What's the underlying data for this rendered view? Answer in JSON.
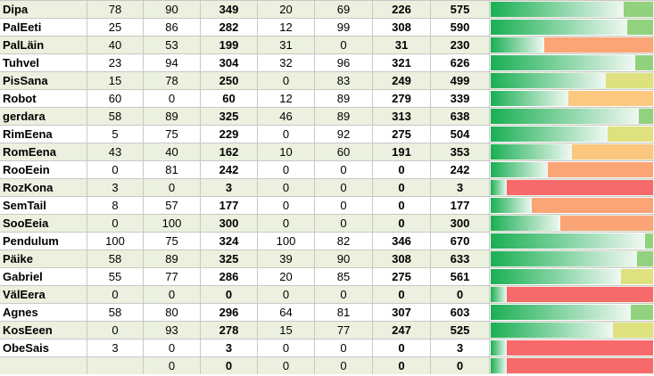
{
  "colors": {
    "row_odd": "#ebf1de",
    "row_even": "#ffffff",
    "grid": "#c8c8c8",
    "bar_gradient_start": "#1aaf54",
    "bar_gradient_end": "#f0f8f2",
    "status_high": "#92d17e",
    "status_mid_high": "#dfe17f",
    "status_mid": "#fcc77e",
    "status_low": "#fba476",
    "status_min": "#f8696b"
  },
  "max_total": 700,
  "rows": [
    {
      "name": "Dipa",
      "v1": "78",
      "v2": "90",
      "v3": "349",
      "v4": "20",
      "v5": "69",
      "v6": "226",
      "total": "575",
      "progress": 0.82,
      "status": "high"
    },
    {
      "name": "PalEeti",
      "v1": "25",
      "v2": "86",
      "v3": "282",
      "v4": "12",
      "v5": "99",
      "v6": "308",
      "total": "590",
      "progress": 0.84,
      "status": "high"
    },
    {
      "name": "PalLäin",
      "v1": "40",
      "v2": "53",
      "v3": "199",
      "v4": "31",
      "v5": "0",
      "v6": "31",
      "total": "230",
      "progress": 0.33,
      "status": "low"
    },
    {
      "name": "Tuhvel",
      "v1": "23",
      "v2": "94",
      "v3": "304",
      "v4": "32",
      "v5": "96",
      "v6": "321",
      "total": "626",
      "progress": 0.89,
      "status": "high"
    },
    {
      "name": "PisSana",
      "v1": "15",
      "v2": "78",
      "v3": "250",
      "v4": "0",
      "v5": "83",
      "v6": "249",
      "total": "499",
      "progress": 0.71,
      "status": "mid_high"
    },
    {
      "name": "Robot",
      "v1": "60",
      "v2": "0",
      "v3": "60",
      "v4": "12",
      "v5": "89",
      "v6": "279",
      "total": "339",
      "progress": 0.48,
      "status": "mid"
    },
    {
      "name": "gerdara",
      "v1": "58",
      "v2": "89",
      "v3": "325",
      "v4": "46",
      "v5": "89",
      "v6": "313",
      "total": "638",
      "progress": 0.91,
      "status": "high"
    },
    {
      "name": "RimEena",
      "v1": "5",
      "v2": "75",
      "v3": "229",
      "v4": "0",
      "v5": "92",
      "v6": "275",
      "total": "504",
      "progress": 0.72,
      "status": "mid_high"
    },
    {
      "name": "RomEena",
      "v1": "43",
      "v2": "40",
      "v3": "162",
      "v4": "10",
      "v5": "60",
      "v6": "191",
      "total": "353",
      "progress": 0.5,
      "status": "mid"
    },
    {
      "name": "RooEein",
      "v1": "0",
      "v2": "81",
      "v3": "242",
      "v4": "0",
      "v5": "0",
      "v6": "0",
      "total": "242",
      "progress": 0.35,
      "status": "low"
    },
    {
      "name": "RozKona",
      "v1": "3",
      "v2": "0",
      "v3": "3",
      "v4": "0",
      "v5": "0",
      "v6": "0",
      "total": "3",
      "progress": 0.1,
      "status": "min"
    },
    {
      "name": "SemTail",
      "v1": "8",
      "v2": "57",
      "v3": "177",
      "v4": "0",
      "v5": "0",
      "v6": "0",
      "total": "177",
      "progress": 0.25,
      "status": "low"
    },
    {
      "name": "SooEeia",
      "v1": "0",
      "v2": "100",
      "v3": "300",
      "v4": "0",
      "v5": "0",
      "v6": "0",
      "total": "300",
      "progress": 0.43,
      "status": "low"
    },
    {
      "name": "Pendulum",
      "v1": "100",
      "v2": "75",
      "v3": "324",
      "v4": "100",
      "v5": "82",
      "v6": "346",
      "total": "670",
      "progress": 0.95,
      "status": "high"
    },
    {
      "name": "Päike",
      "v1": "58",
      "v2": "89",
      "v3": "325",
      "v4": "39",
      "v5": "90",
      "v6": "308",
      "total": "633",
      "progress": 0.9,
      "status": "high"
    },
    {
      "name": "Gabriel",
      "v1": "55",
      "v2": "77",
      "v3": "286",
      "v4": "20",
      "v5": "85",
      "v6": "275",
      "total": "561",
      "progress": 0.8,
      "status": "mid_high"
    },
    {
      "name": "VälEera",
      "v1": "0",
      "v2": "0",
      "v3": "0",
      "v4": "0",
      "v5": "0",
      "v6": "0",
      "total": "0",
      "progress": 0.1,
      "status": "min"
    },
    {
      "name": "Agnes",
      "v1": "58",
      "v2": "80",
      "v3": "296",
      "v4": "64",
      "v5": "81",
      "v6": "307",
      "total": "603",
      "progress": 0.86,
      "status": "high"
    },
    {
      "name": "KosEeen",
      "v1": "0",
      "v2": "93",
      "v3": "278",
      "v4": "15",
      "v5": "77",
      "v6": "247",
      "total": "525",
      "progress": 0.75,
      "status": "mid_high"
    },
    {
      "name": "ObeSais",
      "v1": "3",
      "v2": "0",
      "v3": "3",
      "v4": "0",
      "v5": "0",
      "v6": "0",
      "total": "3",
      "progress": 0.1,
      "status": "min"
    },
    {
      "name": "",
      "v1": "",
      "v2": "0",
      "v3": "0",
      "v4": "0",
      "v5": "0",
      "v6": "0",
      "total": "0",
      "progress": 0.1,
      "status": "min"
    }
  ]
}
